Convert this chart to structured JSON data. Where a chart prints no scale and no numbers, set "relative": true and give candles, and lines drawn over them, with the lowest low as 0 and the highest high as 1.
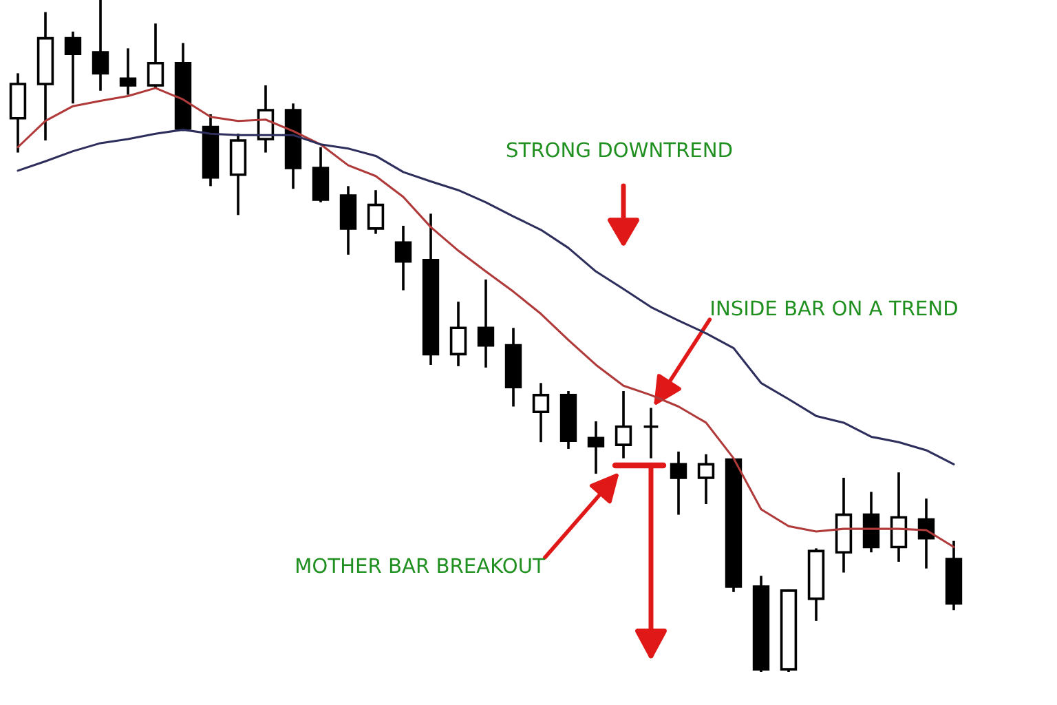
{
  "chart_data": {
    "type": "candlestick",
    "relative": true,
    "legend": false,
    "grid": false,
    "categories": [
      null,
      null,
      null,
      null,
      null,
      null,
      null,
      null,
      null,
      null,
      null,
      null,
      null,
      null,
      null,
      null,
      null,
      null,
      null,
      null,
      null,
      null,
      null,
      null,
      null,
      null,
      null,
      null,
      null,
      null,
      null,
      null,
      null,
      null,
      null
    ],
    "ohlc": [
      [
        0.824,
        0.891,
        0.773,
        0.875
      ],
      [
        0.875,
        0.982,
        0.791,
        0.943
      ],
      [
        0.943,
        0.953,
        0.846,
        0.92
      ],
      [
        0.922,
        1.0,
        0.865,
        0.891
      ],
      [
        0.883,
        0.928,
        0.859,
        0.873
      ],
      [
        0.873,
        0.965,
        0.869,
        0.906
      ],
      [
        0.906,
        0.936,
        0.805,
        0.809
      ],
      [
        0.811,
        0.83,
        0.723,
        0.736
      ],
      [
        0.74,
        0.801,
        0.68,
        0.791
      ],
      [
        0.793,
        0.873,
        0.773,
        0.836
      ],
      [
        0.836,
        0.846,
        0.719,
        0.75
      ],
      [
        0.75,
        0.781,
        0.699,
        0.703
      ],
      [
        0.709,
        0.723,
        0.621,
        0.66
      ],
      [
        0.66,
        0.717,
        0.652,
        0.695
      ],
      [
        0.639,
        0.664,
        0.568,
        0.611
      ],
      [
        0.613,
        0.682,
        0.457,
        0.473
      ],
      [
        0.473,
        0.551,
        0.455,
        0.512
      ],
      [
        0.512,
        0.584,
        0.453,
        0.486
      ],
      [
        0.486,
        0.512,
        0.395,
        0.424
      ],
      [
        0.387,
        0.43,
        0.342,
        0.412
      ],
      [
        0.412,
        0.418,
        0.332,
        0.344
      ],
      [
        0.348,
        0.373,
        0.295,
        0.336
      ],
      [
        0.338,
        0.418,
        0.318,
        0.365
      ],
      [
        0.365,
        0.393,
        0.318,
        0.365
      ],
      [
        0.309,
        0.328,
        0.234,
        0.289
      ],
      [
        0.289,
        0.324,
        0.25,
        0.309
      ],
      [
        0.316,
        0.318,
        0.119,
        0.127
      ],
      [
        0.127,
        0.143,
        0.0,
        0.004
      ],
      [
        0.004,
        0.123,
        0.0,
        0.121
      ],
      [
        0.109,
        0.184,
        0.076,
        0.18
      ],
      [
        0.178,
        0.289,
        0.148,
        0.234
      ],
      [
        0.234,
        0.268,
        0.178,
        0.186
      ],
      [
        0.186,
        0.297,
        0.164,
        0.23
      ],
      [
        0.227,
        0.258,
        0.154,
        0.199
      ],
      [
        0.168,
        0.195,
        0.092,
        0.102
      ]
    ],
    "series": [
      {
        "type": "line",
        "color": "#b03a3a",
        "values": [
          0.781,
          0.82,
          0.842,
          0.85,
          0.857,
          0.869,
          0.852,
          0.826,
          0.82,
          0.822,
          0.805,
          0.785,
          0.754,
          0.738,
          0.707,
          0.662,
          0.627,
          0.596,
          0.566,
          0.533,
          0.494,
          0.457,
          0.426,
          0.412,
          0.395,
          0.371,
          0.318,
          0.242,
          0.217,
          0.209,
          0.213,
          0.213,
          0.213,
          0.211,
          0.186
        ]
      },
      {
        "type": "line",
        "color": "#2e2e5c",
        "values": [
          0.746,
          0.76,
          0.775,
          0.787,
          0.793,
          0.801,
          0.807,
          0.801,
          0.799,
          0.799,
          0.799,
          0.785,
          0.779,
          0.768,
          0.744,
          0.73,
          0.717,
          0.699,
          0.678,
          0.658,
          0.631,
          0.596,
          0.57,
          0.543,
          0.523,
          0.504,
          0.482,
          0.43,
          0.406,
          0.381,
          0.371,
          0.35,
          0.342,
          0.33,
          0.309
        ]
      }
    ],
    "annotations": [
      "STRONG DOWNTREND",
      "INSIDE BAR ON A TREND",
      "MOTHER BAR BREAKOUT"
    ]
  }
}
